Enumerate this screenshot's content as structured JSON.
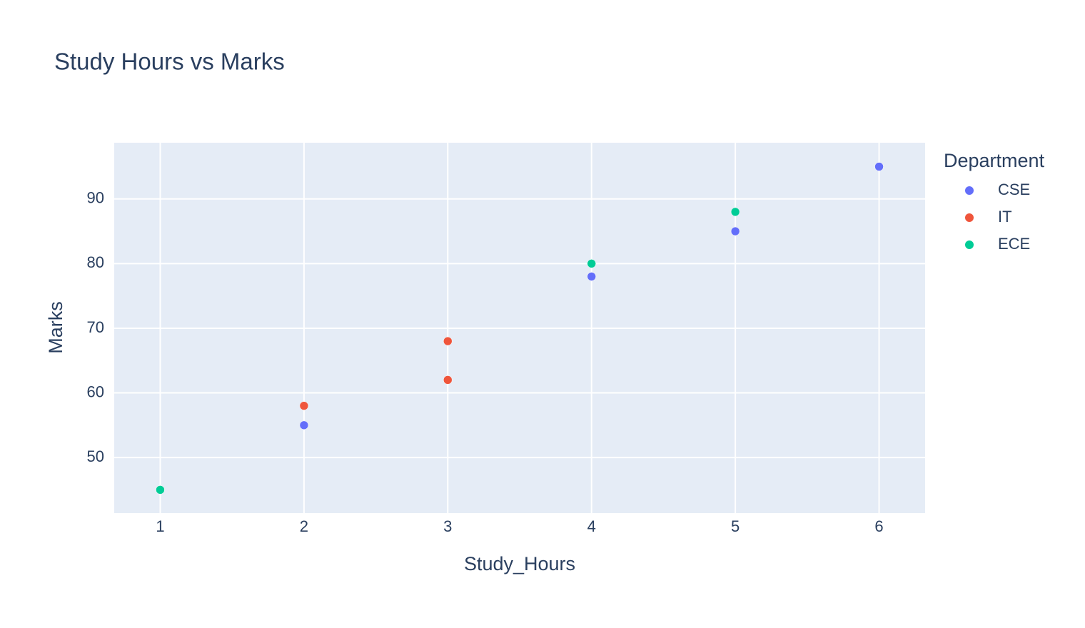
{
  "chart_data": {
    "type": "scatter",
    "title": "Study Hours vs Marks",
    "x_label": "Study_Hours",
    "y_label": "Marks",
    "legend_title": "Department",
    "series": [
      {
        "name": "CSE",
        "color": "#636efa",
        "x": [
          2,
          4,
          5,
          6
        ],
        "values": [
          55,
          78,
          85,
          95
        ]
      },
      {
        "name": "IT",
        "color": "#EF553B",
        "x": [
          2,
          3,
          3
        ],
        "values": [
          58,
          62,
          68
        ]
      },
      {
        "name": "ECE",
        "color": "#00cc96",
        "x": [
          1,
          4,
          5
        ],
        "values": [
          45,
          80,
          88
        ]
      }
    ],
    "xlim": [
      0.68,
      6.32
    ],
    "ylim": [
      41.4,
      98.7
    ],
    "xticks": [
      1,
      2,
      3,
      4,
      5,
      6
    ],
    "yticks": [
      50,
      60,
      70,
      80,
      90
    ],
    "grid": true
  }
}
